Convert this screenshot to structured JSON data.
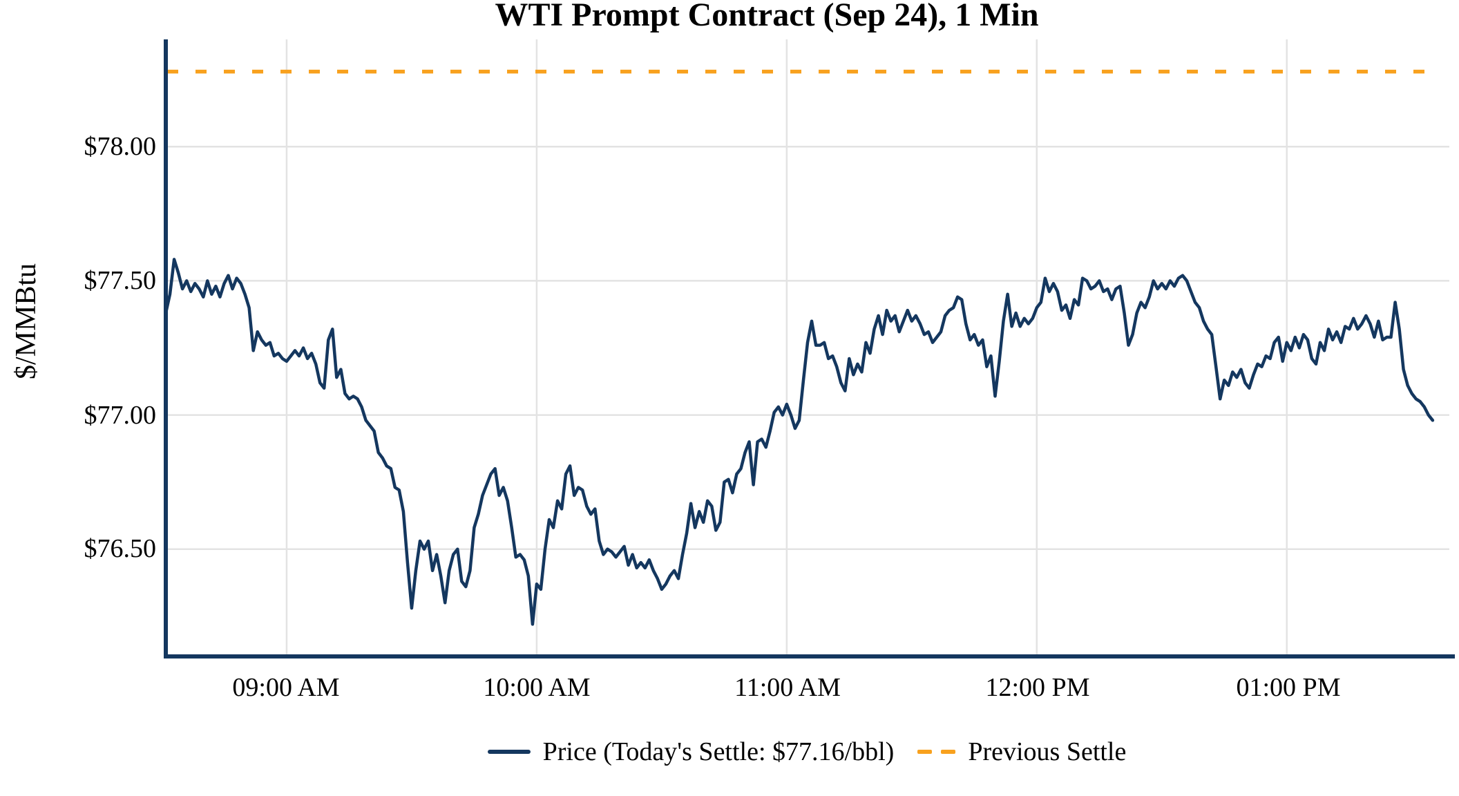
{
  "chart_data": {
    "type": "line",
    "title": "WTI Prompt Contract (Sep 24), 1 Min",
    "xlabel": "",
    "ylabel": "$/MMBtu",
    "grid": true,
    "legend_position": "bottom",
    "x_range": [
      "08:31",
      "13:39"
    ],
    "y_range": [
      76.1,
      78.4
    ],
    "today_settle": 77.16,
    "previous_settle": 78.28,
    "x_ticks": [
      {
        "time": "09:00",
        "label": "09:00 AM"
      },
      {
        "time": "10:00",
        "label": "10:00 AM"
      },
      {
        "time": "11:00",
        "label": "11:00 AM"
      },
      {
        "time": "12:00",
        "label": "12:00 PM"
      },
      {
        "time": "13:00",
        "label": "01:00 PM"
      }
    ],
    "y_ticks": [
      {
        "value": 78.0,
        "label": "$78.00"
      },
      {
        "value": 77.5,
        "label": "$77.50"
      },
      {
        "value": 77.0,
        "label": "$77.00"
      },
      {
        "value": 76.5,
        "label": "$76.50"
      }
    ],
    "series": [
      {
        "name": "Price (Today's Settle: $77.16/bbl)",
        "type": "line",
        "start_time": "08:31",
        "interval_minutes": 1,
        "prices": [
          77.38,
          77.45,
          77.58,
          77.53,
          77.47,
          77.5,
          77.46,
          77.49,
          77.47,
          77.44,
          77.5,
          77.45,
          77.48,
          77.44,
          77.49,
          77.52,
          77.47,
          77.51,
          77.49,
          77.45,
          77.4,
          77.24,
          77.31,
          77.28,
          77.26,
          77.27,
          77.22,
          77.23,
          77.21,
          77.2,
          77.22,
          77.24,
          77.22,
          77.25,
          77.21,
          77.23,
          77.19,
          77.12,
          77.1,
          77.28,
          77.32,
          77.14,
          77.17,
          77.08,
          77.06,
          77.07,
          77.06,
          77.03,
          76.98,
          76.96,
          76.94,
          76.86,
          76.84,
          76.81,
          76.8,
          76.73,
          76.72,
          76.64,
          76.45,
          76.28,
          76.42,
          76.53,
          76.5,
          76.53,
          76.42,
          76.48,
          76.4,
          76.3,
          76.42,
          76.48,
          76.5,
          76.38,
          76.36,
          76.42,
          76.58,
          76.63,
          76.7,
          76.74,
          76.78,
          76.8,
          76.7,
          76.73,
          76.68,
          76.58,
          76.47,
          76.48,
          76.46,
          76.4,
          76.22,
          76.37,
          76.35,
          76.5,
          76.61,
          76.58,
          76.68,
          76.65,
          76.78,
          76.81,
          76.7,
          76.73,
          76.72,
          76.66,
          76.63,
          76.65,
          76.53,
          76.48,
          76.5,
          76.49,
          76.47,
          76.49,
          76.51,
          76.44,
          76.48,
          76.43,
          76.45,
          76.43,
          76.46,
          76.42,
          76.39,
          76.35,
          76.37,
          76.4,
          76.42,
          76.39,
          76.48,
          76.56,
          76.67,
          76.58,
          76.64,
          76.6,
          76.68,
          76.66,
          76.57,
          76.6,
          76.75,
          76.76,
          76.71,
          76.78,
          76.8,
          76.86,
          76.9,
          76.74,
          76.9,
          76.91,
          76.88,
          76.94,
          77.01,
          77.03,
          77.0,
          77.04,
          77.0,
          76.95,
          76.98,
          77.13,
          77.27,
          77.35,
          77.26,
          77.26,
          77.27,
          77.21,
          77.22,
          77.18,
          77.12,
          77.09,
          77.21,
          77.15,
          77.19,
          77.16,
          77.27,
          77.23,
          77.32,
          77.37,
          77.3,
          77.39,
          77.35,
          77.37,
          77.31,
          77.35,
          77.39,
          77.35,
          77.37,
          77.34,
          77.3,
          77.31,
          77.27,
          77.29,
          77.31,
          77.37,
          77.39,
          77.4,
          77.44,
          77.43,
          77.34,
          77.28,
          77.3,
          77.26,
          77.28,
          77.18,
          77.22,
          77.07,
          77.2,
          77.35,
          77.45,
          77.33,
          77.38,
          77.33,
          77.36,
          77.34,
          77.36,
          77.4,
          77.42,
          77.51,
          77.46,
          77.49,
          77.46,
          77.39,
          77.41,
          77.36,
          77.43,
          77.41,
          77.51,
          77.5,
          77.47,
          77.48,
          77.5,
          77.46,
          77.47,
          77.43,
          77.47,
          77.48,
          77.38,
          77.26,
          77.3,
          77.38,
          77.42,
          77.4,
          77.44,
          77.5,
          77.47,
          77.49,
          77.47,
          77.5,
          77.48,
          77.51,
          77.52,
          77.5,
          77.46,
          77.42,
          77.4,
          77.35,
          77.32,
          77.3,
          77.18,
          77.06,
          77.13,
          77.11,
          77.16,
          77.14,
          77.17,
          77.12,
          77.1,
          77.15,
          77.19,
          77.18,
          77.22,
          77.21,
          77.27,
          77.29,
          77.2,
          77.27,
          77.24,
          77.29,
          77.25,
          77.3,
          77.28,
          77.21,
          77.19,
          77.27,
          77.24,
          77.32,
          77.28,
          77.31,
          77.27,
          77.33,
          77.32,
          77.36,
          77.32,
          77.34,
          77.37,
          77.34,
          77.29,
          77.35,
          77.28,
          77.29,
          77.29,
          77.42,
          77.32,
          77.17,
          77.11,
          77.08,
          77.06,
          77.05,
          77.03,
          77.0,
          76.98
        ]
      },
      {
        "name": "Previous Settle",
        "type": "horizontal-dashed-line",
        "value": 78.28
      }
    ]
  },
  "colors": {
    "price_line": "#14375f",
    "previous_settle": "#f8a11e",
    "grid": "#e3e3e3",
    "axis": "#14375f",
    "text": "#000000",
    "background": "#ffffff"
  },
  "legend": {
    "price_label": "Price (Today's Settle: $77.16/bbl)",
    "previous_settle_label": "Previous Settle"
  }
}
